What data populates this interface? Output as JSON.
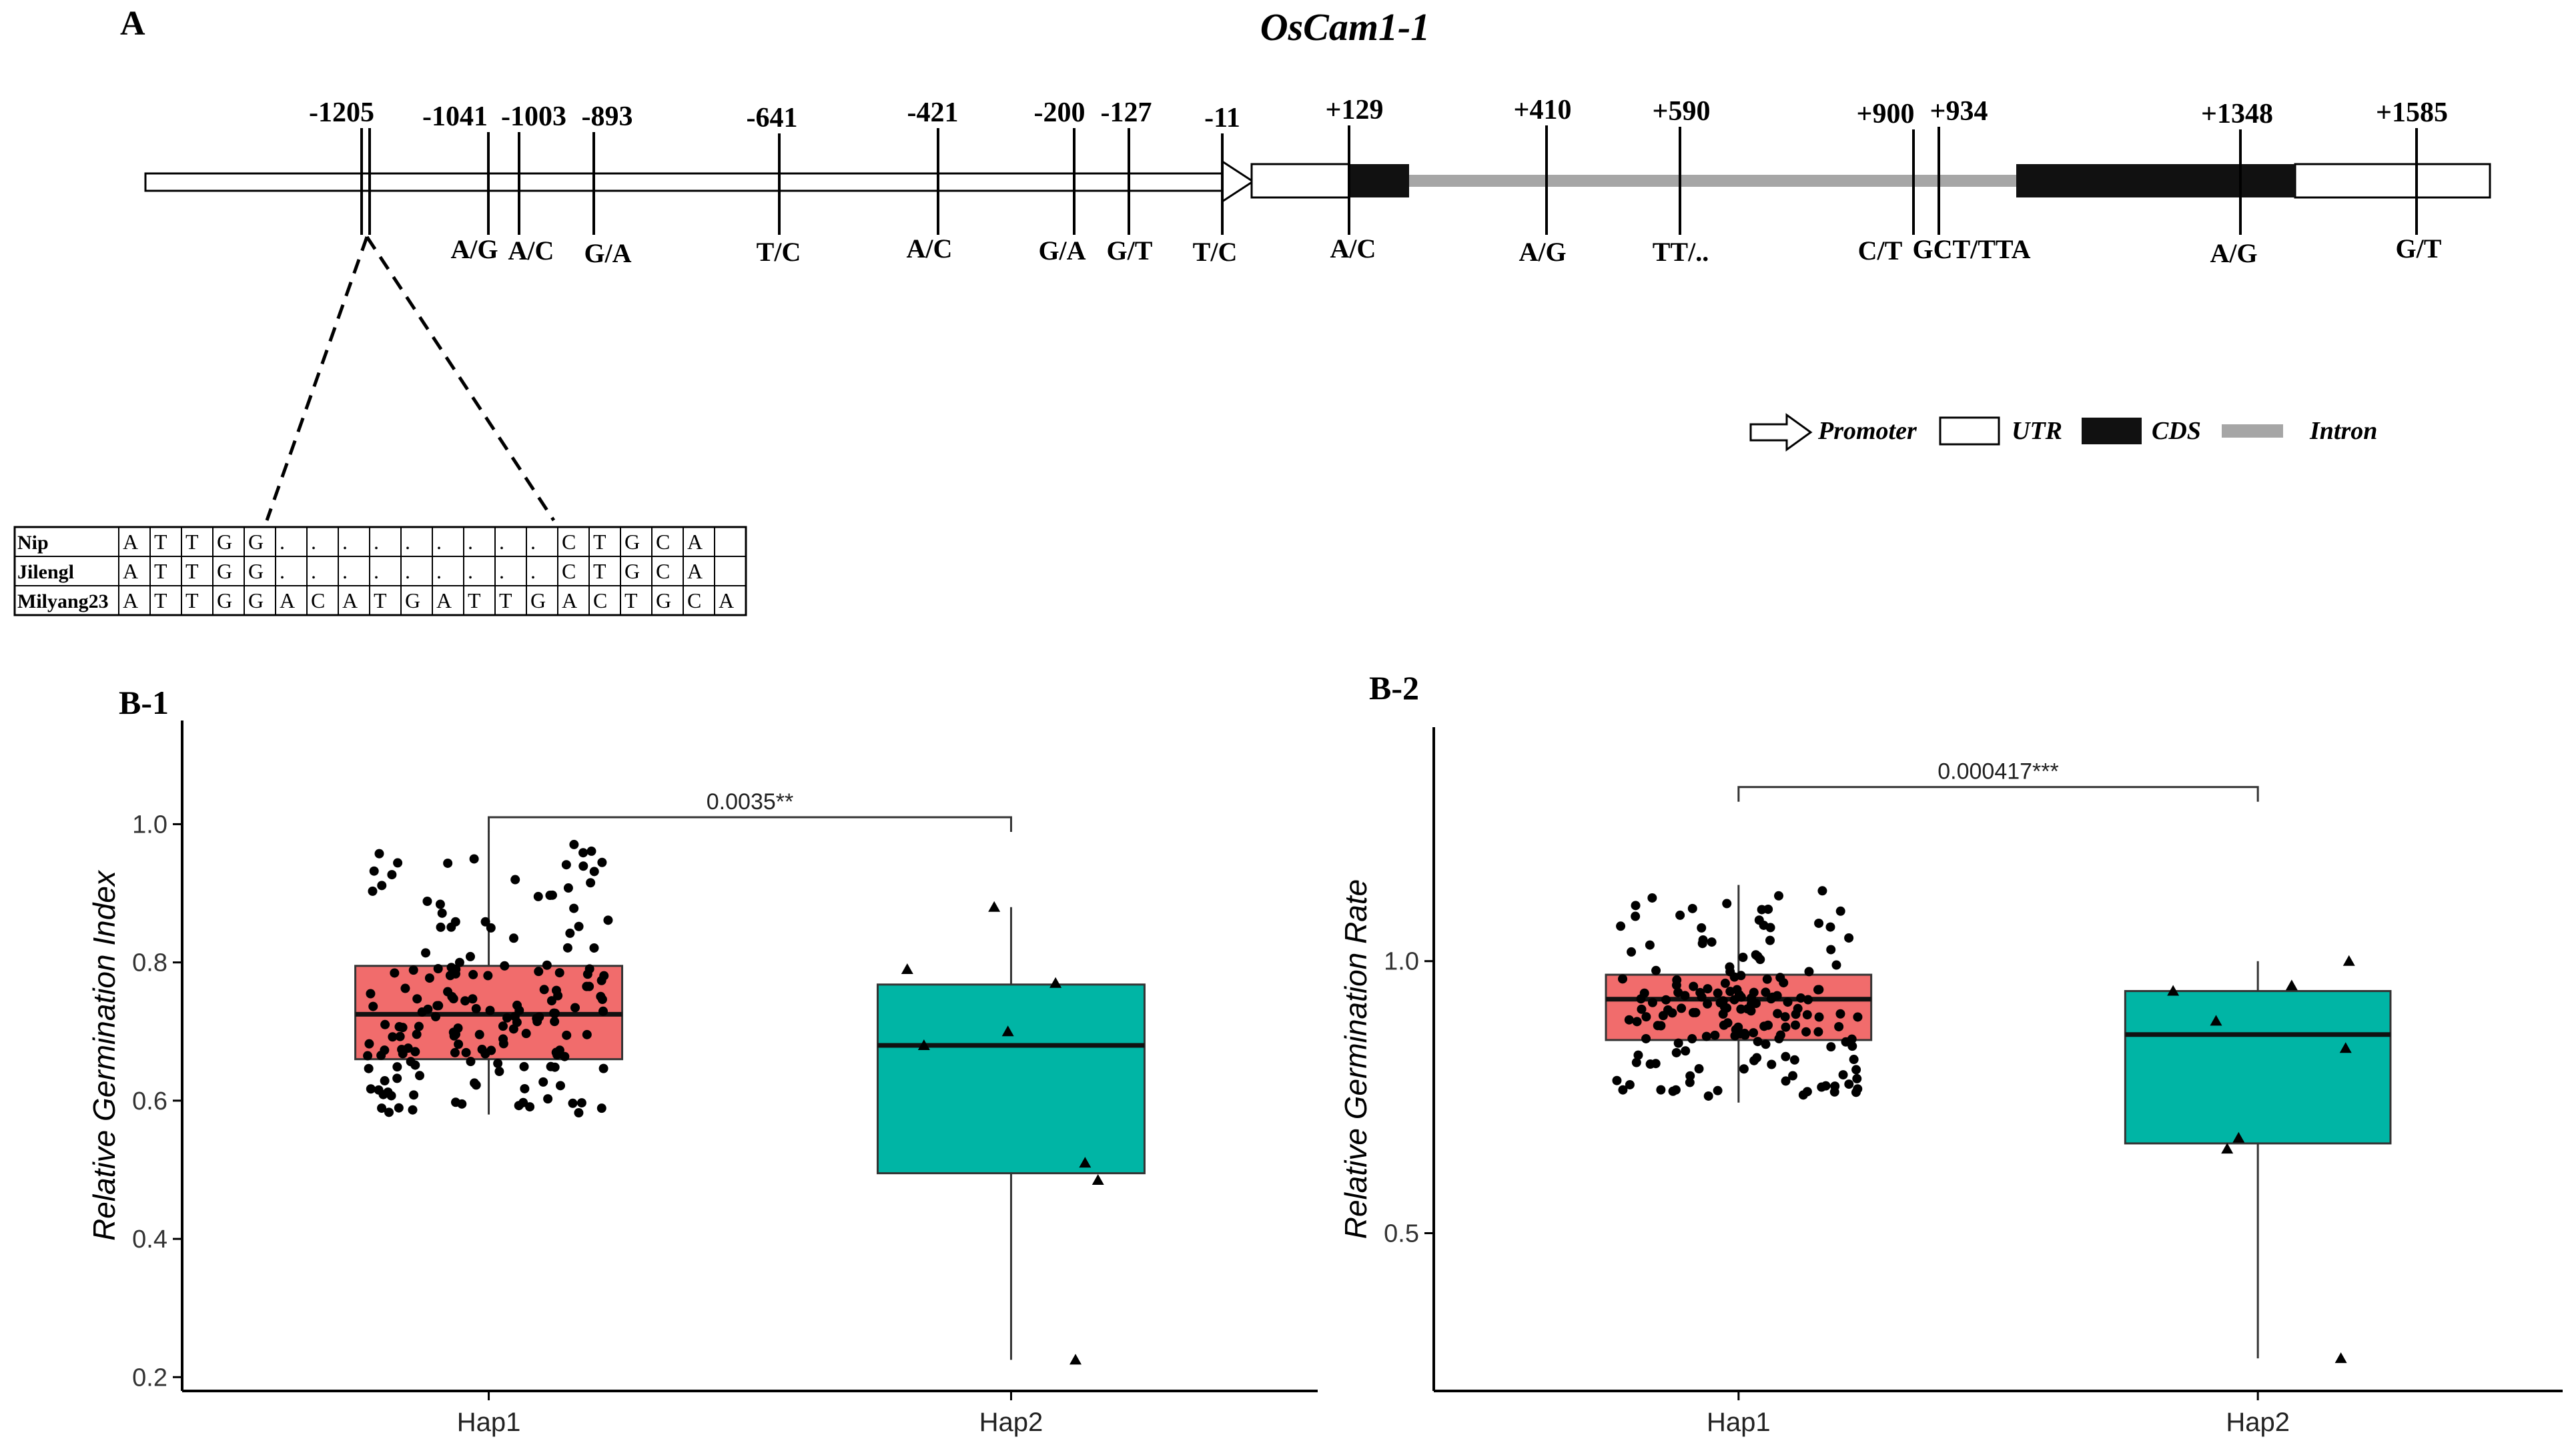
{
  "panel_a": {
    "label": "A",
    "gene_name": "OsCam1-1",
    "markers": [
      {
        "pos": "-1205",
        "allele": ""
      },
      {
        "pos": "-1041",
        "allele": "A/G"
      },
      {
        "pos": "-1003",
        "allele": "A/C"
      },
      {
        "pos": "-893",
        "allele": "G/A"
      },
      {
        "pos": "-641",
        "allele": "T/C"
      },
      {
        "pos": "-421",
        "allele": "A/C"
      },
      {
        "pos": "-200",
        "allele": "G/A"
      },
      {
        "pos": "-127",
        "allele": "G/T"
      },
      {
        "pos": "-11",
        "allele": "T/C"
      },
      {
        "pos": "+129",
        "allele": "A/C"
      },
      {
        "pos": "+410",
        "allele": "A/G"
      },
      {
        "pos": "+590",
        "allele": "TT/.."
      },
      {
        "pos": "+900",
        "allele": "C/T"
      },
      {
        "pos": "+934",
        "allele": "GCT/TTA"
      },
      {
        "pos": "+1348",
        "allele": "A/G"
      },
      {
        "pos": "+1585",
        "allele": "G/T"
      }
    ],
    "legend": [
      "Promoter",
      "UTR",
      "CDS",
      "Intron"
    ],
    "colors": {
      "cds": "#111111",
      "intron": "#a6a6a6",
      "utr": "#ffffff"
    },
    "alignment": {
      "rows": [
        {
          "name": "Nip",
          "seq": [
            "A",
            "T",
            "T",
            "G",
            "G",
            ".",
            ".",
            ".",
            ".",
            ".",
            ".",
            ".",
            ".",
            ".",
            "C",
            "T",
            "G",
            "C",
            "A"
          ]
        },
        {
          "name": "Jilengl",
          "seq": [
            "A",
            "T",
            "T",
            "G",
            "G",
            ".",
            ".",
            ".",
            ".",
            ".",
            ".",
            ".",
            ".",
            ".",
            "C",
            "T",
            "G",
            "C",
            "A"
          ]
        },
        {
          "name": "Milyang23",
          "seq": [
            "A",
            "T",
            "T",
            "G",
            "G",
            "A",
            "C",
            "A",
            "T",
            "G",
            "A",
            "T",
            "T",
            "G",
            "A",
            "C",
            "T",
            "G",
            "C",
            "A"
          ]
        }
      ]
    }
  },
  "chart_data": [
    {
      "type": "box",
      "panel_label": "B-1",
      "title": "",
      "xlabel": "",
      "ylabel": "Relative Germination Index",
      "categories": [
        "Hap1",
        "Hap2"
      ],
      "ylim": [
        0.18,
        1.15
      ],
      "yticks": [
        0.2,
        0.4,
        0.6,
        0.8,
        1.0
      ],
      "ytick_labels": [
        "0.2",
        "0.4",
        "0.6",
        "0.8",
        "1.0"
      ],
      "series": [
        {
          "name": "Hap1",
          "q1": 0.66,
          "median": 0.725,
          "q3": 0.795,
          "whisker_low": 0.58,
          "whisker_high": 0.99,
          "color": "#f16c6c",
          "point_shape": "circle"
        },
        {
          "name": "Hap2",
          "q1": 0.495,
          "median": 0.68,
          "q3": 0.768,
          "whisker_low": 0.225,
          "whisker_high": 0.88,
          "color": "#00b5a5",
          "point_shape": "triangle",
          "points": [
            0.88,
            0.79,
            0.77,
            0.7,
            0.68,
            0.51,
            0.485,
            0.225
          ]
        }
      ],
      "annotation": {
        "text": "0.0035**",
        "y": 1.01
      }
    },
    {
      "type": "box",
      "panel_label": "B-2",
      "title": "",
      "xlabel": "",
      "ylabel": "Relative Germination Rate",
      "categories": [
        "Hap1",
        "Hap2"
      ],
      "ylim": [
        0.21,
        1.43
      ],
      "yticks": [
        0.5,
        1.0
      ],
      "ytick_labels": [
        "0.5",
        "1.0"
      ],
      "series": [
        {
          "name": "Hap1",
          "q1": 0.855,
          "median": 0.93,
          "q3": 0.975,
          "whisker_low": 0.74,
          "whisker_high": 1.14,
          "color": "#f16c6c",
          "point_shape": "circle"
        },
        {
          "name": "Hap2",
          "q1": 0.665,
          "median": 0.865,
          "q3": 0.945,
          "whisker_low": 0.27,
          "whisker_high": 1.0,
          "color": "#00b5a5",
          "point_shape": "triangle",
          "points": [
            1.0,
            0.955,
            0.945,
            0.89,
            0.84,
            0.675,
            0.655,
            0.27
          ]
        }
      ],
      "annotation": {
        "text": "0.000417***",
        "y": 1.32
      }
    }
  ]
}
